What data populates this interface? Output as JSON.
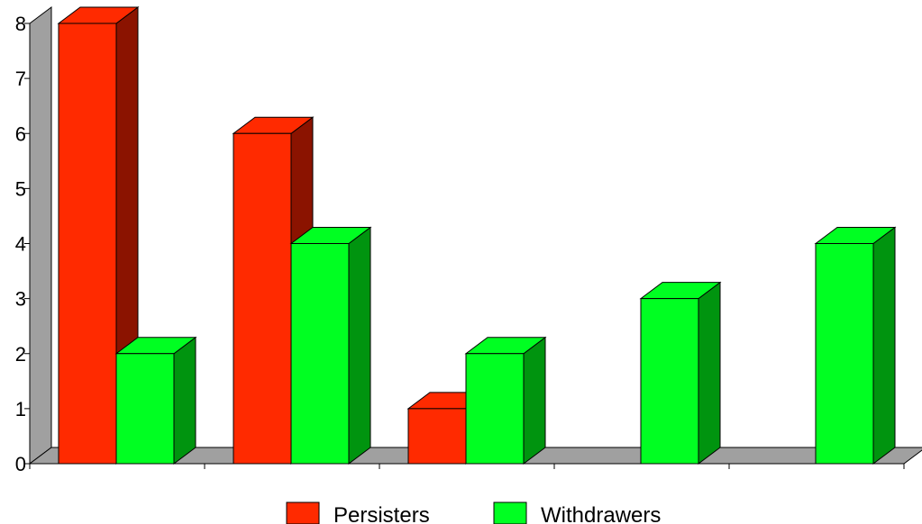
{
  "chart_data": {
    "type": "bar",
    "style": "3d-clustered",
    "categories": [
      "",
      "",
      "",
      "",
      ""
    ],
    "series": [
      {
        "name": "Persisters",
        "values": [
          8,
          6,
          1,
          0,
          0
        ],
        "color": "#ff2a00",
        "side_color": "#8b1300"
      },
      {
        "name": "Withdrawers",
        "values": [
          2,
          4,
          2,
          3,
          4
        ],
        "color": "#00ff22",
        "side_color": "#00940f"
      }
    ],
    "ylim": [
      0,
      8
    ],
    "yticks": [
      0,
      1,
      2,
      3,
      4,
      5,
      6,
      7,
      8
    ],
    "grid": false,
    "legend_position": "bottom-center",
    "colors": {
      "wall": "#a0a0a0",
      "floor": "#a0a0a0",
      "axis": "#000000"
    }
  }
}
